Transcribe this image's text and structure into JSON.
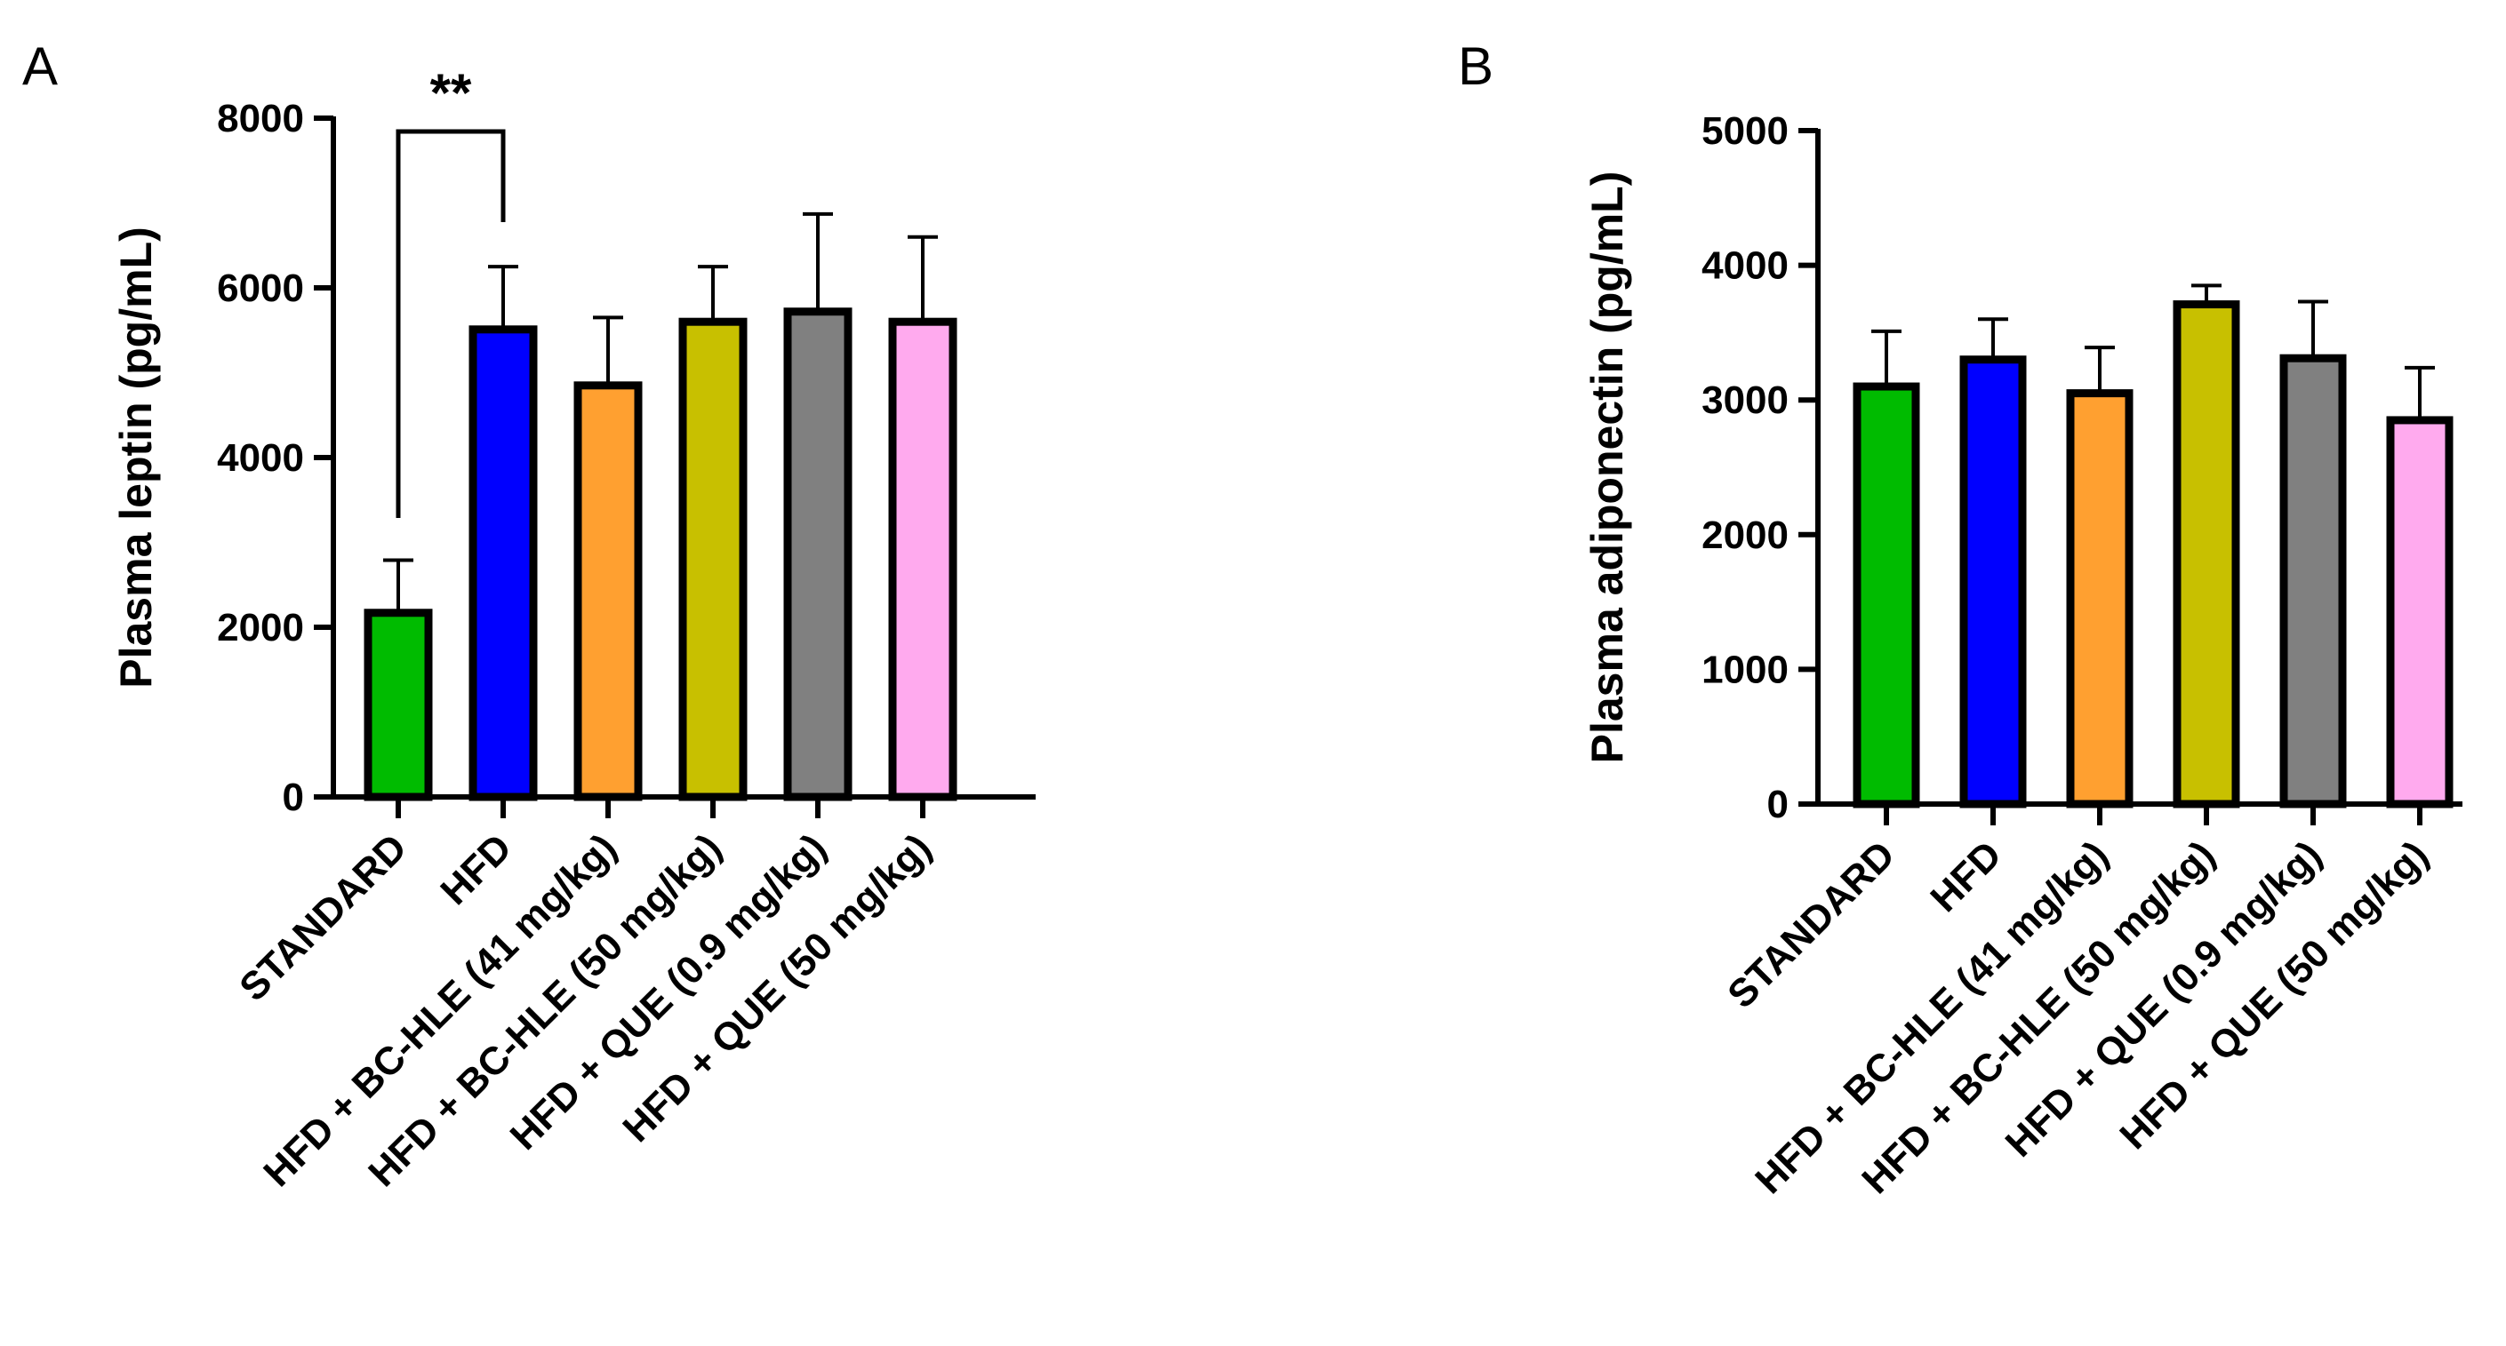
{
  "chart_data": [
    {
      "panel": "A",
      "type": "bar",
      "title": "",
      "xlabel": "",
      "ylabel": "Plasma leptin (pg/mL)",
      "ylim": [
        0,
        8000
      ],
      "yticks": [
        0,
        2000,
        4000,
        6000,
        8000
      ],
      "grid": false,
      "categories": [
        "STANDARD",
        "HFD",
        "HFD + BC-HLE (41 mg/kg)",
        "HFD + BC-HLE (50 mg/kg)",
        "HFD + QUE (0.9 mg/kg)",
        "HFD + QUE (50 mg/kg)"
      ],
      "values": [
        2170,
        5510,
        4850,
        5600,
        5720,
        5600
      ],
      "errors": [
        620,
        740,
        800,
        650,
        1150,
        1000
      ],
      "colors": [
        "#00bb00",
        "#0000ff",
        "#ffa030",
        "#c8c000",
        "#808080",
        "#ffaaee"
      ],
      "annotations": [
        {
          "text": "**",
          "from_category": "STANDARD",
          "to_category": "HFD"
        }
      ]
    },
    {
      "panel": "B",
      "type": "bar",
      "title": "",
      "xlabel": "",
      "ylabel": "Plasma adiponectin (pg/mL)",
      "ylim": [
        0,
        5000
      ],
      "yticks": [
        0,
        1000,
        2000,
        3000,
        4000,
        5000
      ],
      "grid": false,
      "categories": [
        "STANDARD",
        "HFD",
        "HFD + BC-HLE (41 mg/kg)",
        "HFD + BC-HLE (50 mg/kg)",
        "HFD + QUE (0.9 mg/kg)",
        "HFD + QUE (50 mg/kg)"
      ],
      "values": [
        3100,
        3300,
        3050,
        3710,
        3310,
        2850
      ],
      "errors": [
        410,
        300,
        340,
        140,
        420,
        390
      ],
      "colors": [
        "#00bb00",
        "#0000ff",
        "#ffa030",
        "#c8c000",
        "#808080",
        "#ffaaee"
      ],
      "annotations": []
    }
  ]
}
